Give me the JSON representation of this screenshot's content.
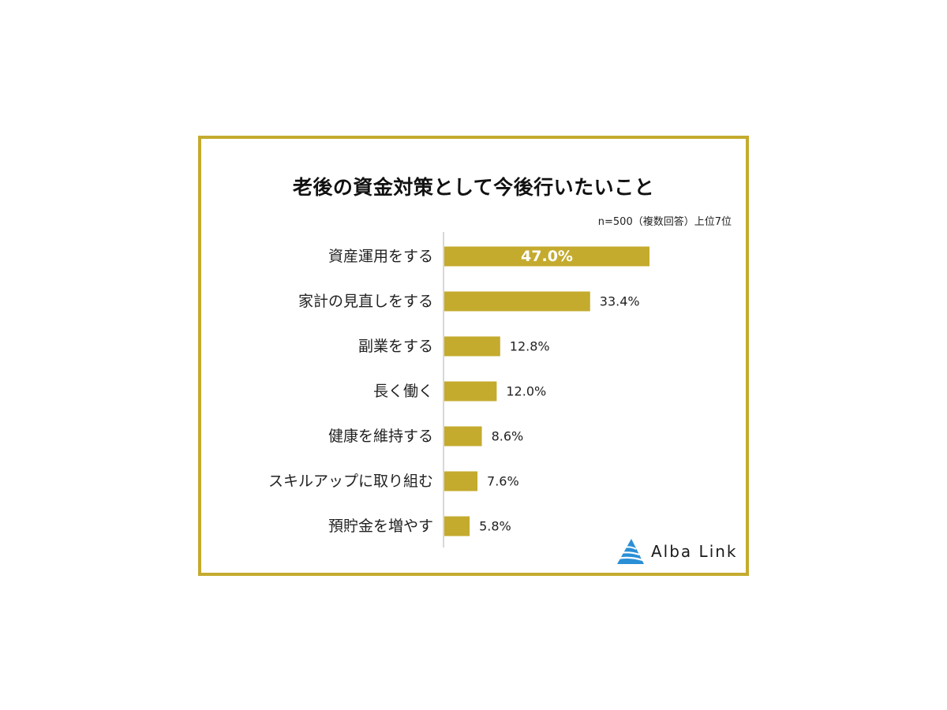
{
  "title": "老後の資金対策として今後行いたいこと",
  "note": "n=500（複数回答）上位7位",
  "brand": {
    "name": "Alba Link",
    "icon": "alba-link-logo-icon"
  },
  "colors": {
    "bar": "#c4ab2e",
    "frame": "#c4ab2e",
    "axis": "#cccccc",
    "label_inside": "#ffffff",
    "label_outside": "#222222"
  },
  "chart_data": {
    "type": "bar",
    "orientation": "horizontal",
    "categories": [
      "資産運用をする",
      "家計の見直しをする",
      "副業をする",
      "長く働く",
      "健康を維持する",
      "スキルアップに取り組む",
      "預貯金を増やす"
    ],
    "values": [
      47.0,
      33.4,
      12.8,
      12.0,
      8.6,
      7.6,
      5.8
    ],
    "value_labels": [
      "47.0%",
      "33.4%",
      "12.8%",
      "12.0%",
      "8.6%",
      "7.6%",
      "5.8%"
    ],
    "unit": "%",
    "xlim": [
      0,
      47.0
    ],
    "grid": false,
    "legend": "none"
  }
}
